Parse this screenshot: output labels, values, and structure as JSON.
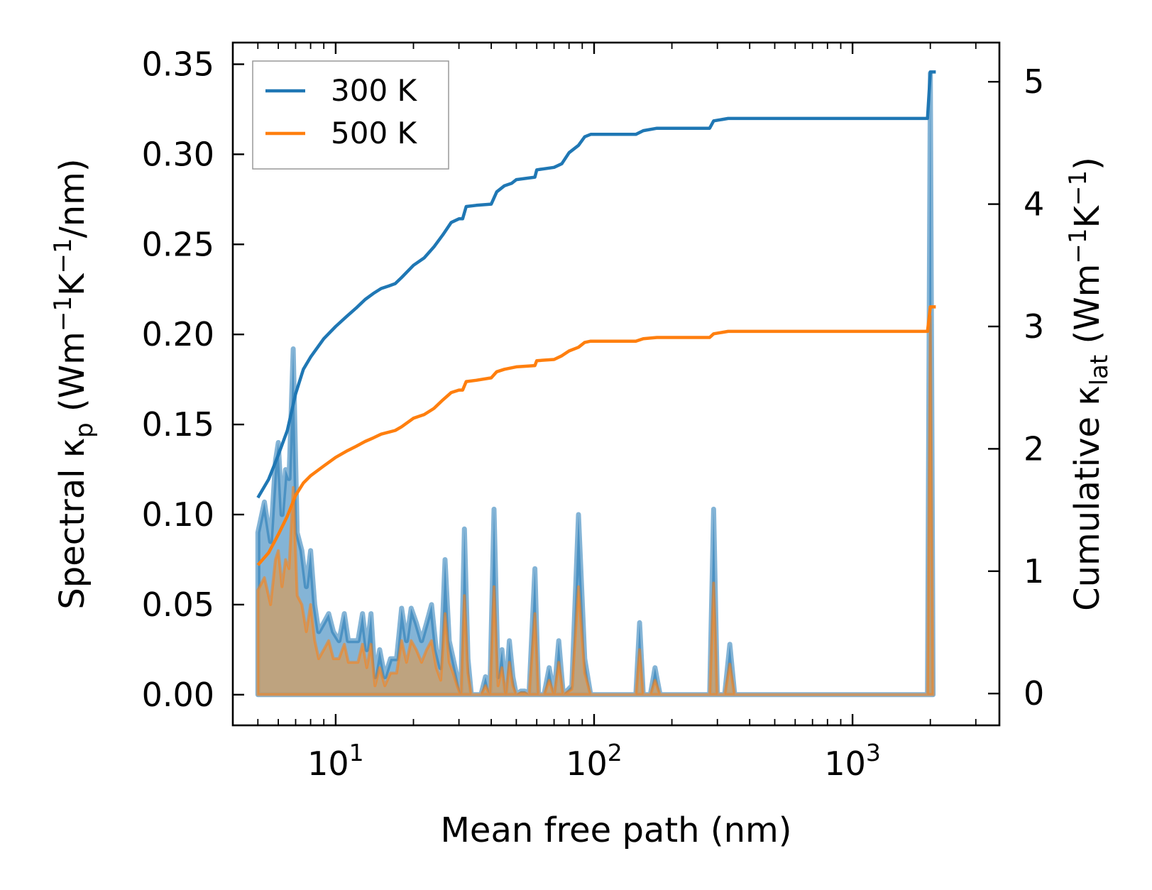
{
  "chart_data": {
    "type": "line",
    "xscale": "log",
    "xlabel": "Mean free path (nm)",
    "xlim": [
      4.0,
      3700
    ],
    "x_ticks": [
      {
        "value": 10,
        "base": "10",
        "exp": "1"
      },
      {
        "value": 100,
        "base": "10",
        "exp": "2"
      },
      {
        "value": 1000,
        "base": "10",
        "exp": "3"
      }
    ],
    "y_left": {
      "label_parts": {
        "main": "Spectral κ",
        "sub": "p",
        "unit_open": " (Wm",
        "sup1": "−1",
        "k": "K",
        "sup2": "−1",
        "unit_close": "/nm)"
      },
      "lim": [
        -0.017,
        0.362
      ],
      "ticks": [
        0.0,
        0.05,
        0.1,
        0.15,
        0.2,
        0.25,
        0.3,
        0.35
      ],
      "tick_labels": [
        "0.00",
        "0.05",
        "0.10",
        "0.15",
        "0.20",
        "0.25",
        "0.30",
        "0.35"
      ]
    },
    "y_right": {
      "label_parts": {
        "main": "Cumulative κ",
        "sub": "lat",
        "unit_open": " (Wm",
        "sup1": "−1",
        "k": "K",
        "sup2": "−1",
        "unit_close": ")"
      },
      "lim": [
        -0.26,
        5.32
      ],
      "ticks": [
        0,
        1,
        2,
        3,
        4,
        5
      ],
      "tick_labels": [
        "0",
        "1",
        "2",
        "3",
        "4",
        "5"
      ]
    },
    "legend": {
      "position": "top-left"
    },
    "series": [
      {
        "name": "300 K",
        "color": "#1f77b4",
        "fill": "#1f77b4",
        "spectral": [
          [
            5.0,
            0.09
          ],
          [
            5.3,
            0.107
          ],
          [
            5.6,
            0.085
          ],
          [
            5.85,
            0.13
          ],
          [
            6.0,
            0.14
          ],
          [
            6.2,
            0.1
          ],
          [
            6.4,
            0.125
          ],
          [
            6.6,
            0.12
          ],
          [
            6.85,
            0.192
          ],
          [
            7.1,
            0.09
          ],
          [
            7.4,
            0.08
          ],
          [
            7.7,
            0.06
          ],
          [
            8.0,
            0.08
          ],
          [
            8.3,
            0.05
          ],
          [
            8.6,
            0.035
          ],
          [
            9.0,
            0.04
          ],
          [
            9.4,
            0.045
          ],
          [
            9.8,
            0.035
          ],
          [
            10.3,
            0.03
          ],
          [
            10.8,
            0.045
          ],
          [
            11.2,
            0.03
          ],
          [
            11.7,
            0.03
          ],
          [
            12.2,
            0.03
          ],
          [
            12.7,
            0.045
          ],
          [
            13.2,
            0.025
          ],
          [
            13.7,
            0.045
          ],
          [
            14.2,
            0.01
          ],
          [
            14.8,
            0.025
          ],
          [
            15.5,
            0.01
          ],
          [
            16.3,
            0.02
          ],
          [
            17.2,
            0.02
          ],
          [
            18.0,
            0.048
          ],
          [
            18.8,
            0.03
          ],
          [
            19.6,
            0.048
          ],
          [
            20.5,
            0.04
          ],
          [
            21.5,
            0.03
          ],
          [
            22.5,
            0.04
          ],
          [
            23.5,
            0.05
          ],
          [
            24.5,
            0.025
          ],
          [
            25.5,
            0.015
          ],
          [
            26.5,
            0.075
          ],
          [
            27.5,
            0.03
          ],
          [
            28.5,
            0.02
          ],
          [
            29.5,
            0.01
          ],
          [
            30.5,
            0.0
          ],
          [
            31.5,
            0.092
          ],
          [
            32.5,
            0.02
          ],
          [
            33.5,
            0.0
          ],
          [
            35.0,
            0.0
          ],
          [
            36.5,
            0.0
          ],
          [
            38.0,
            0.01
          ],
          [
            39.5,
            0.0
          ],
          [
            41.0,
            0.103
          ],
          [
            42.5,
            0.01
          ],
          [
            44.0,
            0.025
          ],
          [
            45.5,
            0.0
          ],
          [
            47.0,
            0.03
          ],
          [
            48.5,
            0.01
          ],
          [
            50.0,
            0.0
          ],
          [
            52.0,
            0.002
          ],
          [
            54.0,
            0.002
          ],
          [
            56.0,
            0.0
          ],
          [
            59.0,
            0.07
          ],
          [
            61.0,
            0.0
          ],
          [
            64.0,
            0.0
          ],
          [
            67.0,
            0.015
          ],
          [
            70.0,
            0.0
          ],
          [
            73.0,
            0.03
          ],
          [
            76.0,
            0.0
          ],
          [
            82.0,
            0.005
          ],
          [
            87.0,
            0.1
          ],
          [
            92.0,
            0.02
          ],
          [
            97.0,
            0.0
          ],
          [
            145.0,
            0.0
          ],
          [
            150.0,
            0.04
          ],
          [
            155.0,
            0.0
          ],
          [
            165.0,
            0.0
          ],
          [
            172.0,
            0.015
          ],
          [
            180.0,
            0.0
          ],
          [
            280.0,
            0.0
          ],
          [
            290.0,
            0.103
          ],
          [
            300.0,
            0.0
          ],
          [
            320.0,
            0.0
          ],
          [
            335.0,
            0.028
          ],
          [
            350.0,
            0.0
          ],
          [
            1950.0,
            0.0
          ],
          [
            2000.0,
            0.345
          ],
          [
            2050.0,
            0.0
          ]
        ],
        "cumulative": [
          [
            5.0,
            1.6
          ],
          [
            5.5,
            1.75
          ],
          [
            6.0,
            1.95
          ],
          [
            6.5,
            2.15
          ],
          [
            7.0,
            2.45
          ],
          [
            7.5,
            2.65
          ],
          [
            8.0,
            2.75
          ],
          [
            9.0,
            2.9
          ],
          [
            10.0,
            3.0
          ],
          [
            11.0,
            3.08
          ],
          [
            12.0,
            3.15
          ],
          [
            13.0,
            3.22
          ],
          [
            14.0,
            3.27
          ],
          [
            15.0,
            3.31
          ],
          [
            16.0,
            3.33
          ],
          [
            17.0,
            3.35
          ],
          [
            18.0,
            3.4
          ],
          [
            20.0,
            3.5
          ],
          [
            22.0,
            3.56
          ],
          [
            24.0,
            3.65
          ],
          [
            26.0,
            3.75
          ],
          [
            28.0,
            3.85
          ],
          [
            30.0,
            3.88
          ],
          [
            31.0,
            3.88
          ],
          [
            32.0,
            3.98
          ],
          [
            35.0,
            3.99
          ],
          [
            40.0,
            4.0
          ],
          [
            42.0,
            4.1
          ],
          [
            45.0,
            4.15
          ],
          [
            48.0,
            4.17
          ],
          [
            50.0,
            4.2
          ],
          [
            59.0,
            4.22
          ],
          [
            60.0,
            4.28
          ],
          [
            70.0,
            4.3
          ],
          [
            75.0,
            4.33
          ],
          [
            80.0,
            4.42
          ],
          [
            87.0,
            4.48
          ],
          [
            92.0,
            4.55
          ],
          [
            97.0,
            4.57
          ],
          [
            145.0,
            4.57
          ],
          [
            155.0,
            4.6
          ],
          [
            175.0,
            4.62
          ],
          [
            280.0,
            4.62
          ],
          [
            290.0,
            4.68
          ],
          [
            330.0,
            4.7
          ],
          [
            1950.0,
            4.7
          ],
          [
            2000.0,
            5.08
          ],
          [
            2100.0,
            5.08
          ]
        ]
      },
      {
        "name": "500 K",
        "color": "#ff7f0e",
        "fill": "#c8a070",
        "spectral": [
          [
            5.0,
            0.058
          ],
          [
            5.3,
            0.065
          ],
          [
            5.6,
            0.05
          ],
          [
            5.85,
            0.075
          ],
          [
            6.0,
            0.08
          ],
          [
            6.2,
            0.06
          ],
          [
            6.4,
            0.075
          ],
          [
            6.6,
            0.07
          ],
          [
            6.85,
            0.115
          ],
          [
            7.1,
            0.055
          ],
          [
            7.4,
            0.05
          ],
          [
            7.7,
            0.035
          ],
          [
            8.0,
            0.05
          ],
          [
            8.3,
            0.03
          ],
          [
            8.6,
            0.02
          ],
          [
            9.0,
            0.025
          ],
          [
            9.4,
            0.03
          ],
          [
            9.8,
            0.02
          ],
          [
            10.3,
            0.02
          ],
          [
            10.8,
            0.028
          ],
          [
            11.2,
            0.018
          ],
          [
            11.7,
            0.018
          ],
          [
            12.2,
            0.018
          ],
          [
            12.7,
            0.028
          ],
          [
            13.2,
            0.015
          ],
          [
            13.7,
            0.028
          ],
          [
            14.2,
            0.005
          ],
          [
            14.8,
            0.015
          ],
          [
            15.5,
            0.005
          ],
          [
            16.3,
            0.012
          ],
          [
            17.2,
            0.012
          ],
          [
            18.0,
            0.03
          ],
          [
            18.8,
            0.018
          ],
          [
            19.6,
            0.03
          ],
          [
            20.5,
            0.025
          ],
          [
            21.5,
            0.018
          ],
          [
            22.5,
            0.025
          ],
          [
            23.5,
            0.03
          ],
          [
            24.5,
            0.015
          ],
          [
            25.5,
            0.008
          ],
          [
            26.5,
            0.045
          ],
          [
            27.5,
            0.018
          ],
          [
            28.5,
            0.012
          ],
          [
            29.5,
            0.005
          ],
          [
            30.5,
            0.0
          ],
          [
            31.5,
            0.055
          ],
          [
            32.5,
            0.012
          ],
          [
            33.5,
            0.0
          ],
          [
            35.0,
            0.0
          ],
          [
            36.5,
            0.0
          ],
          [
            38.0,
            0.005
          ],
          [
            39.5,
            0.0
          ],
          [
            41.0,
            0.06
          ],
          [
            42.5,
            0.005
          ],
          [
            44.0,
            0.015
          ],
          [
            45.5,
            0.0
          ],
          [
            47.0,
            0.018
          ],
          [
            48.5,
            0.005
          ],
          [
            50.0,
            0.0
          ],
          [
            52.0,
            0.001
          ],
          [
            54.0,
            0.001
          ],
          [
            56.0,
            0.0
          ],
          [
            59.0,
            0.045
          ],
          [
            61.0,
            0.0
          ],
          [
            64.0,
            0.0
          ],
          [
            67.0,
            0.008
          ],
          [
            70.0,
            0.0
          ],
          [
            73.0,
            0.018
          ],
          [
            76.0,
            0.0
          ],
          [
            82.0,
            0.003
          ],
          [
            87.0,
            0.06
          ],
          [
            92.0,
            0.012
          ],
          [
            97.0,
            0.0
          ],
          [
            145.0,
            0.0
          ],
          [
            150.0,
            0.025
          ],
          [
            155.0,
            0.0
          ],
          [
            165.0,
            0.0
          ],
          [
            172.0,
            0.008
          ],
          [
            180.0,
            0.0
          ],
          [
            280.0,
            0.0
          ],
          [
            290.0,
            0.062
          ],
          [
            300.0,
            0.0
          ],
          [
            320.0,
            0.0
          ],
          [
            335.0,
            0.017
          ],
          [
            350.0,
            0.0
          ],
          [
            1950.0,
            0.0
          ],
          [
            2000.0,
            0.21
          ],
          [
            2050.0,
            0.0
          ]
        ],
        "cumulative": [
          [
            5.0,
            1.05
          ],
          [
            5.5,
            1.15
          ],
          [
            6.0,
            1.3
          ],
          [
            6.5,
            1.45
          ],
          [
            7.0,
            1.62
          ],
          [
            7.5,
            1.72
          ],
          [
            8.0,
            1.78
          ],
          [
            9.0,
            1.86
          ],
          [
            10.0,
            1.93
          ],
          [
            11.0,
            1.98
          ],
          [
            12.0,
            2.02
          ],
          [
            13.0,
            2.06
          ],
          [
            14.0,
            2.09
          ],
          [
            15.0,
            2.12
          ],
          [
            17.0,
            2.15
          ],
          [
            18.0,
            2.18
          ],
          [
            20.0,
            2.25
          ],
          [
            22.0,
            2.28
          ],
          [
            24.0,
            2.33
          ],
          [
            26.0,
            2.4
          ],
          [
            28.0,
            2.46
          ],
          [
            30.0,
            2.48
          ],
          [
            31.0,
            2.48
          ],
          [
            32.0,
            2.55
          ],
          [
            35.0,
            2.56
          ],
          [
            40.0,
            2.58
          ],
          [
            42.0,
            2.63
          ],
          [
            45.0,
            2.65
          ],
          [
            50.0,
            2.67
          ],
          [
            59.0,
            2.68
          ],
          [
            60.0,
            2.72
          ],
          [
            70.0,
            2.73
          ],
          [
            75.0,
            2.76
          ],
          [
            80.0,
            2.8
          ],
          [
            87.0,
            2.83
          ],
          [
            92.0,
            2.87
          ],
          [
            97.0,
            2.88
          ],
          [
            145.0,
            2.88
          ],
          [
            155.0,
            2.9
          ],
          [
            175.0,
            2.91
          ],
          [
            280.0,
            2.91
          ],
          [
            290.0,
            2.94
          ],
          [
            330.0,
            2.96
          ],
          [
            1950.0,
            2.96
          ],
          [
            2000.0,
            3.16
          ],
          [
            2100.0,
            3.16
          ]
        ]
      }
    ]
  }
}
